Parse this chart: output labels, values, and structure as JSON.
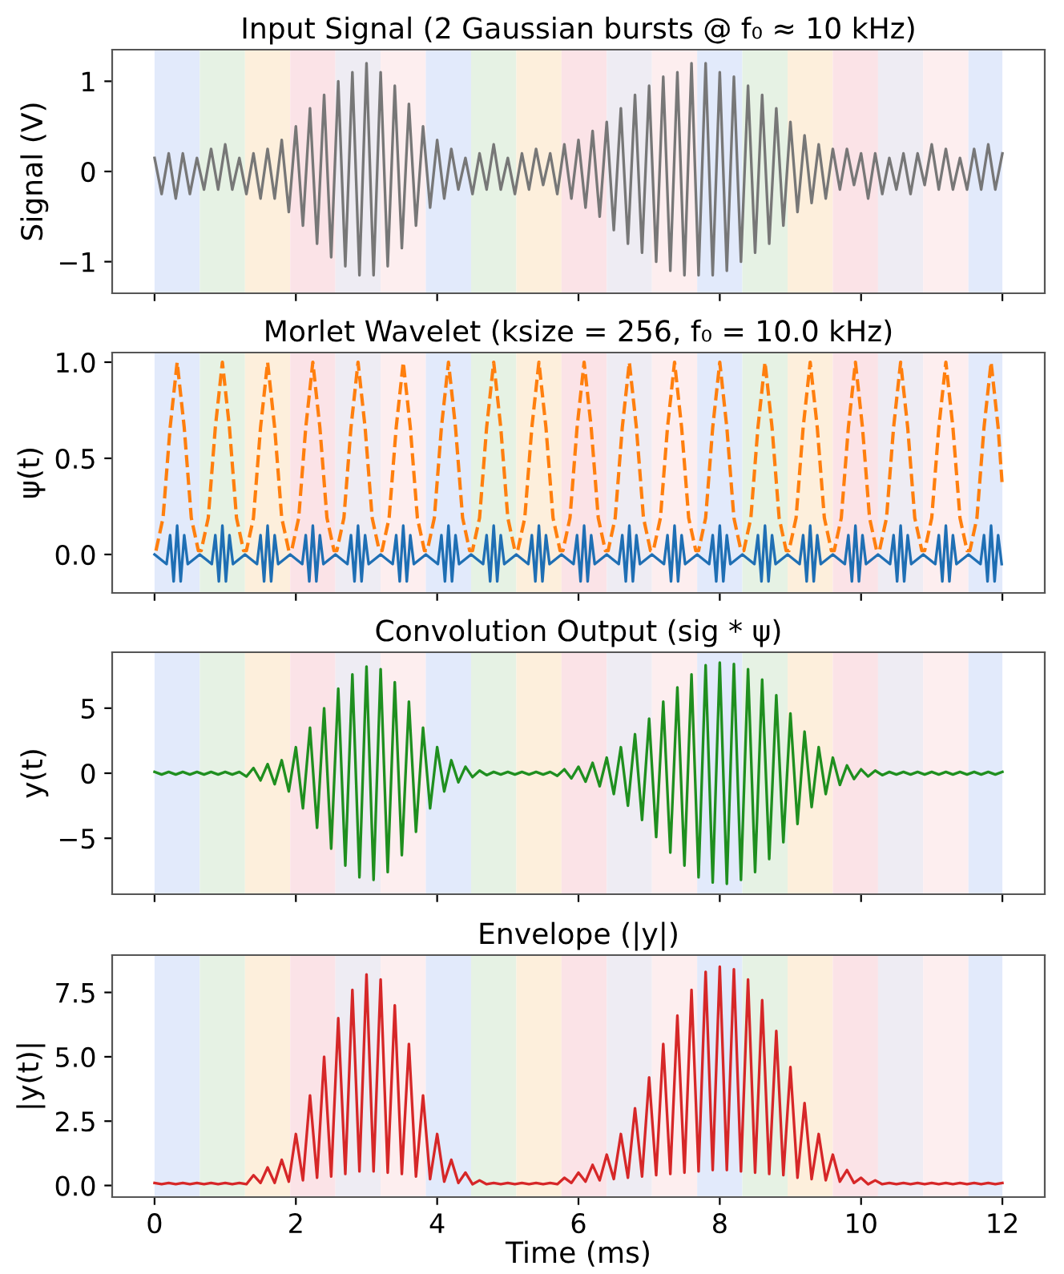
{
  "chart_data": [
    {
      "type": "line",
      "title": "Input Signal (2 Gaussian bursts @ f₀ ≈ 10 kHz)",
      "ylabel": "Signal (V)",
      "x": [
        0,
        0.1,
        0.2,
        0.3,
        0.4,
        0.5,
        0.6,
        0.7,
        0.8,
        0.9,
        1.0,
        1.1,
        1.2,
        1.3,
        1.4,
        1.5,
        1.6,
        1.7,
        1.8,
        1.9,
        2.0,
        2.1,
        2.2,
        2.3,
        2.4,
        2.5,
        2.6,
        2.7,
        2.8,
        2.9,
        3.0,
        3.1,
        3.2,
        3.3,
        3.4,
        3.5,
        3.6,
        3.7,
        3.8,
        3.9,
        4.0,
        4.1,
        4.2,
        4.3,
        4.4,
        4.5,
        4.6,
        4.7,
        4.8,
        4.9,
        5.0,
        5.1,
        5.2,
        5.3,
        5.4,
        5.5,
        5.6,
        5.7,
        5.8,
        5.9,
        6.0,
        6.1,
        6.2,
        6.3,
        6.4,
        6.5,
        6.6,
        6.7,
        6.8,
        6.9,
        7.0,
        7.1,
        7.2,
        7.3,
        7.4,
        7.5,
        7.6,
        7.7,
        7.8,
        7.9,
        8.0,
        8.1,
        8.2,
        8.3,
        8.4,
        8.5,
        8.6,
        8.7,
        8.8,
        8.9,
        9.0,
        9.1,
        9.2,
        9.3,
        9.4,
        9.5,
        9.6,
        9.7,
        9.8,
        9.9,
        10.0,
        10.1,
        10.2,
        10.3,
        10.4,
        10.5,
        10.6,
        10.7,
        10.8,
        10.9,
        11.0,
        11.1,
        11.2,
        11.3,
        11.4,
        11.5,
        11.6,
        11.7,
        11.8,
        11.9,
        12.0
      ],
      "series": [
        {
          "color": "#777777",
          "values": [
            0.15,
            -0.25,
            0.2,
            -0.3,
            0.2,
            -0.25,
            0.15,
            -0.2,
            0.25,
            -0.2,
            0.3,
            -0.2,
            0.15,
            -0.25,
            0.2,
            -0.3,
            0.25,
            -0.3,
            0.35,
            -0.45,
            0.5,
            -0.6,
            0.7,
            -0.8,
            0.85,
            -0.95,
            1.0,
            -1.05,
            1.1,
            -1.15,
            1.2,
            -1.15,
            1.1,
            -1.05,
            0.95,
            -0.85,
            0.75,
            -0.6,
            0.5,
            -0.4,
            0.35,
            -0.3,
            0.25,
            -0.2,
            0.15,
            -0.25,
            0.2,
            -0.2,
            0.3,
            -0.2,
            0.15,
            -0.25,
            0.2,
            -0.2,
            0.25,
            -0.15,
            0.2,
            -0.25,
            0.3,
            -0.3,
            0.35,
            -0.4,
            0.45,
            -0.5,
            0.55,
            -0.65,
            0.7,
            -0.8,
            0.85,
            -0.9,
            0.95,
            -1.0,
            1.05,
            -1.1,
            1.1,
            -1.15,
            1.2,
            -1.15,
            1.2,
            -1.15,
            1.1,
            -1.1,
            1.05,
            -1.0,
            0.95,
            -0.9,
            0.85,
            -0.8,
            0.7,
            -0.6,
            0.55,
            -0.45,
            0.4,
            -0.35,
            0.3,
            -0.3,
            0.25,
            -0.2,
            0.25,
            -0.15,
            0.2,
            -0.3,
            0.2,
            -0.25,
            0.15,
            -0.2,
            0.2,
            -0.25,
            0.2,
            -0.15,
            0.3,
            -0.2,
            0.25,
            -0.2,
            0.15,
            -0.2,
            0.25,
            -0.2,
            0.3,
            -0.2,
            0.2
          ]
        }
      ],
      "xlim": [
        -0.6,
        12.6
      ],
      "xticks": [
        {
          "value": 0,
          "label": null
        },
        {
          "value": 2,
          "label": null
        },
        {
          "value": 4,
          "label": null
        },
        {
          "value": 6,
          "label": null
        },
        {
          "value": 8,
          "label": null
        },
        {
          "value": 10,
          "label": null
        },
        {
          "value": 12,
          "label": null
        }
      ],
      "ylim": [
        -1.35,
        1.35
      ],
      "yticks": [
        {
          "value": -1,
          "label": "−1"
        },
        0,
        1
      ],
      "tick_labels": "y",
      "bands": [
        {
          "axis": "x",
          "from": 0,
          "to": 0.64,
          "color": "#e2eafb"
        },
        {
          "axis": "x",
          "from": 0.64,
          "to": 1.28,
          "color": "#e6f2e4"
        },
        {
          "axis": "x",
          "from": 1.28,
          "to": 1.92,
          "color": "#fdefdc"
        },
        {
          "axis": "x",
          "from": 1.92,
          "to": 2.56,
          "color": "#fbe3e7"
        },
        {
          "axis": "x",
          "from": 2.56,
          "to": 3.2,
          "color": "#eeecf3"
        },
        {
          "axis": "x",
          "from": 3.2,
          "to": 3.84,
          "color": "#fdeeef"
        },
        {
          "axis": "x",
          "from": 3.84,
          "to": 4.48,
          "color": "#e2eafb"
        },
        {
          "axis": "x",
          "from": 4.48,
          "to": 5.12,
          "color": "#e6f2e4"
        },
        {
          "axis": "x",
          "from": 5.12,
          "to": 5.76,
          "color": "#fdefdc"
        },
        {
          "axis": "x",
          "from": 5.76,
          "to": 6.4,
          "color": "#fbe3e7"
        },
        {
          "axis": "x",
          "from": 6.4,
          "to": 7.04,
          "color": "#eeecf3"
        },
        {
          "axis": "x",
          "from": 7.04,
          "to": 7.68,
          "color": "#fdeeef"
        },
        {
          "axis": "x",
          "from": 7.68,
          "to": 8.32,
          "color": "#e2eafb"
        },
        {
          "axis": "x",
          "from": 8.32,
          "to": 8.96,
          "color": "#e6f2e4"
        },
        {
          "axis": "x",
          "from": 8.96,
          "to": 9.6,
          "color": "#fdefdc"
        },
        {
          "axis": "x",
          "from": 9.6,
          "to": 10.24,
          "color": "#fbe3e7"
        },
        {
          "axis": "x",
          "from": 10.24,
          "to": 10.88,
          "color": "#eeecf3"
        },
        {
          "axis": "x",
          "from": 10.88,
          "to": 11.52,
          "color": "#fdeeef"
        },
        {
          "axis": "x",
          "from": 11.52,
          "to": 12,
          "color": "#e2eafb"
        }
      ]
    },
    {
      "type": "line",
      "title": "Morlet Wavelet (ksize = 256, f₀ = 10.0 kHz)",
      "ylabel": "ψ(t)",
      "series": [
        {
          "color": "#ff7f0e",
          "line_style": "dashed",
          "x": [
            0.02,
            0.12,
            0.22,
            0.32,
            0.42,
            0.52,
            0.62,
            0.66,
            0.76,
            0.86,
            0.96,
            1.06,
            1.16,
            1.26,
            1.3,
            1.4,
            1.5,
            1.6,
            1.7,
            1.8,
            1.9,
            1.94,
            2.04,
            2.14,
            2.24,
            2.34,
            2.44,
            2.54,
            2.58,
            2.68,
            2.78,
            2.88,
            2.98,
            3.08,
            3.18,
            3.22,
            3.32,
            3.42,
            3.52,
            3.62,
            3.72,
            3.82,
            3.86,
            3.96,
            4.06,
            4.16,
            4.26,
            4.36,
            4.46,
            4.5,
            4.6,
            4.7,
            4.8,
            4.9,
            5.0,
            5.1,
            5.14,
            5.24,
            5.34,
            5.44,
            5.54,
            5.64,
            5.74,
            5.78,
            5.88,
            5.98,
            6.08,
            6.18,
            6.28,
            6.38,
            6.42,
            6.52,
            6.62,
            6.72,
            6.82,
            6.92,
            7.02,
            7.06,
            7.16,
            7.26,
            7.36,
            7.46,
            7.56,
            7.66,
            7.7,
            7.8,
            7.9,
            8.0,
            8.1,
            8.2,
            8.3,
            8.34,
            8.44,
            8.54,
            8.64,
            8.74,
            8.84,
            8.94,
            8.98,
            9.08,
            9.18,
            9.28,
            9.38,
            9.48,
            9.58,
            9.62,
            9.72,
            9.82,
            9.92,
            10.02,
            10.12,
            10.22,
            10.26,
            10.36,
            10.46,
            10.56,
            10.66,
            10.76,
            10.86,
            10.9,
            11.0,
            11.1,
            11.2,
            11.3,
            11.4,
            11.5,
            11.54,
            11.64,
            11.74,
            11.84,
            11.94,
            12.0
          ],
          "values": [
            0.02,
            0.19,
            0.66,
            1.0,
            0.66,
            0.19,
            0.02,
            0.02,
            0.19,
            0.66,
            1.0,
            0.66,
            0.19,
            0.02,
            0.02,
            0.19,
            0.66,
            1.0,
            0.66,
            0.19,
            0.02,
            0.02,
            0.19,
            0.66,
            1.0,
            0.66,
            0.19,
            0.02,
            0.02,
            0.19,
            0.66,
            1.0,
            0.66,
            0.19,
            0.02,
            0.02,
            0.19,
            0.66,
            1.0,
            0.66,
            0.19,
            0.02,
            0.02,
            0.19,
            0.66,
            1.0,
            0.66,
            0.19,
            0.02,
            0.02,
            0.19,
            0.66,
            1.0,
            0.66,
            0.19,
            0.02,
            0.02,
            0.19,
            0.66,
            1.0,
            0.66,
            0.19,
            0.02,
            0.02,
            0.19,
            0.66,
            1.0,
            0.66,
            0.19,
            0.02,
            0.02,
            0.19,
            0.66,
            1.0,
            0.66,
            0.19,
            0.02,
            0.02,
            0.19,
            0.66,
            1.0,
            0.66,
            0.19,
            0.02,
            0.02,
            0.19,
            0.66,
            1.0,
            0.66,
            0.19,
            0.02,
            0.02,
            0.19,
            0.66,
            1.0,
            0.66,
            0.19,
            0.02,
            0.02,
            0.19,
            0.66,
            1.0,
            0.66,
            0.19,
            0.02,
            0.02,
            0.19,
            0.66,
            1.0,
            0.66,
            0.19,
            0.02,
            0.02,
            0.19,
            0.66,
            1.0,
            0.66,
            0.19,
            0.02,
            0.02,
            0.19,
            0.66,
            1.0,
            0.66,
            0.19,
            0.02,
            0.02,
            0.19,
            0.66,
            1.0,
            0.66,
            0.35
          ]
        },
        {
          "color": "#1f6fb4",
          "x": [
            0.0,
            0.17,
            0.22,
            0.27,
            0.32,
            0.37,
            0.42,
            0.47,
            0.64,
            0.81,
            0.86,
            0.91,
            0.96,
            1.01,
            1.06,
            1.11,
            1.28,
            1.45,
            1.5,
            1.55,
            1.6,
            1.65,
            1.7,
            1.75,
            1.92,
            2.09,
            2.14,
            2.19,
            2.24,
            2.29,
            2.34,
            2.39,
            2.56,
            2.73,
            2.78,
            2.83,
            2.88,
            2.93,
            2.98,
            3.03,
            3.2,
            3.37,
            3.42,
            3.47,
            3.52,
            3.57,
            3.62,
            3.67,
            3.84,
            4.01,
            4.06,
            4.11,
            4.16,
            4.21,
            4.26,
            4.31,
            4.48,
            4.65,
            4.7,
            4.75,
            4.8,
            4.85,
            4.9,
            4.95,
            5.12,
            5.29,
            5.34,
            5.39,
            5.44,
            5.49,
            5.54,
            5.59,
            5.76,
            5.93,
            5.98,
            6.03,
            6.08,
            6.13,
            6.18,
            6.23,
            6.4,
            6.57,
            6.62,
            6.67,
            6.72,
            6.77,
            6.82,
            6.87,
            7.04,
            7.21,
            7.26,
            7.31,
            7.36,
            7.41,
            7.46,
            7.51,
            7.68,
            7.85,
            7.9,
            7.95,
            8.0,
            8.05,
            8.1,
            8.15,
            8.32,
            8.49,
            8.54,
            8.59,
            8.64,
            8.69,
            8.74,
            8.79,
            8.96,
            9.13,
            9.18,
            9.23,
            9.28,
            9.33,
            9.38,
            9.43,
            9.6,
            9.77,
            9.82,
            9.87,
            9.92,
            9.97,
            10.02,
            10.07,
            10.24,
            10.41,
            10.46,
            10.51,
            10.56,
            10.61,
            10.66,
            10.71,
            10.88,
            11.05,
            11.1,
            11.15,
            11.2,
            11.25,
            11.3,
            11.35,
            11.52,
            11.69,
            11.74,
            11.79,
            11.84,
            11.89,
            11.94,
            11.99
          ],
          "values": [
            0.0,
            -0.05,
            0.1,
            -0.14,
            0.15,
            -0.14,
            0.1,
            -0.05,
            0.0,
            -0.05,
            0.1,
            -0.14,
            0.15,
            -0.14,
            0.1,
            -0.05,
            0.0,
            -0.05,
            0.1,
            -0.14,
            0.15,
            -0.14,
            0.1,
            -0.05,
            0.0,
            -0.05,
            0.1,
            -0.14,
            0.15,
            -0.14,
            0.1,
            -0.05,
            0.0,
            -0.05,
            0.1,
            -0.14,
            0.15,
            -0.14,
            0.1,
            -0.05,
            0.0,
            -0.05,
            0.1,
            -0.14,
            0.15,
            -0.14,
            0.1,
            -0.05,
            0.0,
            -0.05,
            0.1,
            -0.14,
            0.15,
            -0.14,
            0.1,
            -0.05,
            0.0,
            -0.05,
            0.1,
            -0.14,
            0.15,
            -0.14,
            0.1,
            -0.05,
            0.0,
            -0.05,
            0.1,
            -0.14,
            0.15,
            -0.14,
            0.1,
            -0.05,
            0.0,
            -0.05,
            0.1,
            -0.14,
            0.15,
            -0.14,
            0.1,
            -0.05,
            0.0,
            -0.05,
            0.1,
            -0.14,
            0.15,
            -0.14,
            0.1,
            -0.05,
            0.0,
            -0.05,
            0.1,
            -0.14,
            0.15,
            -0.14,
            0.1,
            -0.05,
            0.0,
            -0.05,
            0.1,
            -0.14,
            0.15,
            -0.14,
            0.1,
            -0.05,
            0.0,
            -0.05,
            0.1,
            -0.14,
            0.15,
            -0.14,
            0.1,
            -0.05,
            0.0,
            -0.05,
            0.1,
            -0.14,
            0.15,
            -0.14,
            0.1,
            -0.05,
            0.0,
            -0.05,
            0.1,
            -0.14,
            0.15,
            -0.14,
            0.1,
            -0.05,
            0.0,
            -0.05,
            0.1,
            -0.14,
            0.15,
            -0.14,
            0.1,
            -0.05,
            0.0,
            -0.05,
            0.1,
            -0.14,
            0.15,
            -0.14,
            0.1,
            -0.05,
            0.0,
            -0.05,
            0.1,
            -0.14,
            0.15,
            -0.14,
            0.1,
            -0.05
          ]
        }
      ],
      "xlim": [
        -0.6,
        12.6
      ],
      "xticks": [
        {
          "value": 0,
          "label": null
        },
        {
          "value": 2,
          "label": null
        },
        {
          "value": 4,
          "label": null
        },
        {
          "value": 6,
          "label": null
        },
        {
          "value": 8,
          "label": null
        },
        {
          "value": 10,
          "label": null
        },
        {
          "value": 12,
          "label": null
        }
      ],
      "ylim": [
        -0.2,
        1.05
      ],
      "yticks": [
        {
          "value": 0,
          "label": "0.0"
        },
        {
          "value": 0.5,
          "label": "0.5"
        },
        {
          "value": 1,
          "label": "1.0"
        }
      ],
      "tick_labels": "y",
      "bands": [
        {
          "axis": "x",
          "from": 0,
          "to": 0.64,
          "color": "#e2eafb"
        },
        {
          "axis": "x",
          "from": 0.64,
          "to": 1.28,
          "color": "#e6f2e4"
        },
        {
          "axis": "x",
          "from": 1.28,
          "to": 1.92,
          "color": "#fdefdc"
        },
        {
          "axis": "x",
          "from": 1.92,
          "to": 2.56,
          "color": "#fbe3e7"
        },
        {
          "axis": "x",
          "from": 2.56,
          "to": 3.2,
          "color": "#eeecf3"
        },
        {
          "axis": "x",
          "from": 3.2,
          "to": 3.84,
          "color": "#fdeeef"
        },
        {
          "axis": "x",
          "from": 3.84,
          "to": 4.48,
          "color": "#e2eafb"
        },
        {
          "axis": "x",
          "from": 4.48,
          "to": 5.12,
          "color": "#e6f2e4"
        },
        {
          "axis": "x",
          "from": 5.12,
          "to": 5.76,
          "color": "#fdefdc"
        },
        {
          "axis": "x",
          "from": 5.76,
          "to": 6.4,
          "color": "#fbe3e7"
        },
        {
          "axis": "x",
          "from": 6.4,
          "to": 7.04,
          "color": "#eeecf3"
        },
        {
          "axis": "x",
          "from": 7.04,
          "to": 7.68,
          "color": "#fdeeef"
        },
        {
          "axis": "x",
          "from": 7.68,
          "to": 8.32,
          "color": "#e2eafb"
        },
        {
          "axis": "x",
          "from": 8.32,
          "to": 8.96,
          "color": "#e6f2e4"
        },
        {
          "axis": "x",
          "from": 8.96,
          "to": 9.6,
          "color": "#fdefdc"
        },
        {
          "axis": "x",
          "from": 9.6,
          "to": 10.24,
          "color": "#fbe3e7"
        },
        {
          "axis": "x",
          "from": 10.24,
          "to": 10.88,
          "color": "#eeecf3"
        },
        {
          "axis": "x",
          "from": 10.88,
          "to": 11.52,
          "color": "#fdeeef"
        },
        {
          "axis": "x",
          "from": 11.52,
          "to": 12,
          "color": "#e2eafb"
        }
      ]
    },
    {
      "type": "line",
      "title": "Convolution Output (sig * ψ)",
      "ylabel": "y(t)",
      "x": [
        0,
        0.1,
        0.2,
        0.3,
        0.4,
        0.5,
        0.6,
        0.7,
        0.8,
        0.9,
        1.0,
        1.1,
        1.2,
        1.3,
        1.4,
        1.5,
        1.6,
        1.7,
        1.8,
        1.9,
        2.0,
        2.1,
        2.2,
        2.3,
        2.4,
        2.5,
        2.6,
        2.7,
        2.8,
        2.9,
        3.0,
        3.1,
        3.2,
        3.3,
        3.4,
        3.5,
        3.6,
        3.7,
        3.8,
        3.9,
        4.0,
        4.1,
        4.2,
        4.3,
        4.4,
        4.5,
        4.6,
        4.7,
        4.8,
        4.9,
        5.0,
        5.1,
        5.2,
        5.3,
        5.4,
        5.5,
        5.6,
        5.7,
        5.8,
        5.9,
        6.0,
        6.1,
        6.2,
        6.3,
        6.4,
        6.5,
        6.6,
        6.7,
        6.8,
        6.9,
        7.0,
        7.1,
        7.2,
        7.3,
        7.4,
        7.5,
        7.6,
        7.7,
        7.8,
        7.9,
        8.0,
        8.1,
        8.2,
        8.3,
        8.4,
        8.5,
        8.6,
        8.7,
        8.8,
        8.9,
        9.0,
        9.1,
        9.2,
        9.3,
        9.4,
        9.5,
        9.6,
        9.7,
        9.8,
        9.9,
        10.0,
        10.1,
        10.2,
        10.3,
        10.4,
        10.5,
        10.6,
        10.7,
        10.8,
        10.9,
        11.0,
        11.1,
        11.2,
        11.3,
        11.4,
        11.5,
        11.6,
        11.7,
        11.8,
        11.9,
        12.0
      ],
      "series": [
        {
          "color": "#1f8f1f",
          "values": [
            0.1,
            -0.1,
            0.1,
            -0.1,
            0.1,
            -0.1,
            0.1,
            -0.1,
            0.1,
            -0.1,
            0.1,
            -0.1,
            0.1,
            -0.25,
            0.4,
            -0.55,
            0.7,
            -0.85,
            1.0,
            -1.4,
            2.0,
            -2.7,
            3.5,
            -4.2,
            5.0,
            -5.8,
            6.5,
            -7.1,
            7.6,
            -8.0,
            8.2,
            -8.2,
            8.0,
            -7.6,
            7.0,
            -6.3,
            5.5,
            -4.5,
            3.5,
            -2.7,
            2.0,
            -1.4,
            1.0,
            -0.7,
            0.5,
            -0.3,
            0.2,
            -0.15,
            0.1,
            -0.1,
            0.1,
            -0.1,
            0.1,
            -0.1,
            0.1,
            -0.1,
            0.1,
            -0.2,
            0.3,
            -0.4,
            0.5,
            -0.65,
            0.8,
            -1.0,
            1.2,
            -1.6,
            2.0,
            -2.5,
            3.0,
            -3.6,
            4.2,
            -4.9,
            5.5,
            -6.1,
            6.6,
            -7.1,
            7.6,
            -8.0,
            8.3,
            -8.4,
            8.5,
            -8.5,
            8.4,
            -8.2,
            8.0,
            -7.6,
            7.2,
            -6.6,
            6.0,
            -5.3,
            4.6,
            -3.9,
            3.2,
            -2.6,
            2.0,
            -1.6,
            1.2,
            -0.9,
            0.6,
            -0.45,
            0.3,
            -0.25,
            0.2,
            -0.15,
            0.1,
            -0.1,
            0.1,
            -0.1,
            0.1,
            -0.1,
            0.1,
            -0.1,
            0.1,
            -0.1,
            0.1,
            -0.1,
            0.1,
            -0.1,
            0.1,
            -0.1,
            0.1
          ]
        }
      ],
      "xlim": [
        -0.6,
        12.6
      ],
      "xticks": [
        {
          "value": 0,
          "label": null
        },
        {
          "value": 2,
          "label": null
        },
        {
          "value": 4,
          "label": null
        },
        {
          "value": 6,
          "label": null
        },
        {
          "value": 8,
          "label": null
        },
        {
          "value": 10,
          "label": null
        },
        {
          "value": 12,
          "label": null
        }
      ],
      "ylim": [
        -9.3,
        9.3
      ],
      "yticks": [
        {
          "value": -5,
          "label": "−5"
        },
        0,
        5
      ],
      "tick_labels": "y",
      "bands": [
        {
          "axis": "x",
          "from": 0,
          "to": 0.64,
          "color": "#e2eafb"
        },
        {
          "axis": "x",
          "from": 0.64,
          "to": 1.28,
          "color": "#e6f2e4"
        },
        {
          "axis": "x",
          "from": 1.28,
          "to": 1.92,
          "color": "#fdefdc"
        },
        {
          "axis": "x",
          "from": 1.92,
          "to": 2.56,
          "color": "#fbe3e7"
        },
        {
          "axis": "x",
          "from": 2.56,
          "to": 3.2,
          "color": "#eeecf3"
        },
        {
          "axis": "x",
          "from": 3.2,
          "to": 3.84,
          "color": "#fdeeef"
        },
        {
          "axis": "x",
          "from": 3.84,
          "to": 4.48,
          "color": "#e2eafb"
        },
        {
          "axis": "x",
          "from": 4.48,
          "to": 5.12,
          "color": "#e6f2e4"
        },
        {
          "axis": "x",
          "from": 5.12,
          "to": 5.76,
          "color": "#fdefdc"
        },
        {
          "axis": "x",
          "from": 5.76,
          "to": 6.4,
          "color": "#fbe3e7"
        },
        {
          "axis": "x",
          "from": 6.4,
          "to": 7.04,
          "color": "#eeecf3"
        },
        {
          "axis": "x",
          "from": 7.04,
          "to": 7.68,
          "color": "#fdeeef"
        },
        {
          "axis": "x",
          "from": 7.68,
          "to": 8.32,
          "color": "#e2eafb"
        },
        {
          "axis": "x",
          "from": 8.32,
          "to": 8.96,
          "color": "#e6f2e4"
        },
        {
          "axis": "x",
          "from": 8.96,
          "to": 9.6,
          "color": "#fdefdc"
        },
        {
          "axis": "x",
          "from": 9.6,
          "to": 10.24,
          "color": "#fbe3e7"
        },
        {
          "axis": "x",
          "from": 10.24,
          "to": 10.88,
          "color": "#eeecf3"
        },
        {
          "axis": "x",
          "from": 10.88,
          "to": 11.52,
          "color": "#fdeeef"
        },
        {
          "axis": "x",
          "from": 11.52,
          "to": 12,
          "color": "#e2eafb"
        }
      ]
    },
    {
      "type": "line",
      "title": "Envelope (|y|)",
      "ylabel": "|y(t)|",
      "xlabel": "Time (ms)",
      "x": [
        0,
        0.1,
        0.2,
        0.3,
        0.4,
        0.5,
        0.6,
        0.7,
        0.8,
        0.9,
        1.0,
        1.1,
        1.2,
        1.3,
        1.4,
        1.5,
        1.6,
        1.7,
        1.8,
        1.9,
        2.0,
        2.1,
        2.2,
        2.3,
        2.4,
        2.5,
        2.6,
        2.7,
        2.8,
        2.9,
        3.0,
        3.1,
        3.2,
        3.3,
        3.4,
        3.5,
        3.6,
        3.7,
        3.8,
        3.9,
        4.0,
        4.1,
        4.2,
        4.3,
        4.4,
        4.5,
        4.6,
        4.7,
        4.8,
        4.9,
        5.0,
        5.1,
        5.2,
        5.3,
        5.4,
        5.5,
        5.6,
        5.7,
        5.8,
        5.9,
        6.0,
        6.1,
        6.2,
        6.3,
        6.4,
        6.5,
        6.6,
        6.7,
        6.8,
        6.9,
        7.0,
        7.1,
        7.2,
        7.3,
        7.4,
        7.5,
        7.6,
        7.7,
        7.8,
        7.9,
        8.0,
        8.1,
        8.2,
        8.3,
        8.4,
        8.5,
        8.6,
        8.7,
        8.8,
        8.9,
        9.0,
        9.1,
        9.2,
        9.3,
        9.4,
        9.5,
        9.6,
        9.7,
        9.8,
        9.9,
        10.0,
        10.1,
        10.2,
        10.3,
        10.4,
        10.5,
        10.6,
        10.7,
        10.8,
        10.9,
        11.0,
        11.1,
        11.2,
        11.3,
        11.4,
        11.5,
        11.6,
        11.7,
        11.8,
        11.9,
        12.0
      ],
      "series": [
        {
          "color": "#d62728",
          "values": [
            0.1,
            0.05,
            0.1,
            0.05,
            0.1,
            0.05,
            0.1,
            0.05,
            0.1,
            0.05,
            0.1,
            0.05,
            0.1,
            0.05,
            0.4,
            0.1,
            0.7,
            0.1,
            1.0,
            0.15,
            2.0,
            0.2,
            3.5,
            0.3,
            5.0,
            0.35,
            6.5,
            0.45,
            7.6,
            0.55,
            8.2,
            0.55,
            8.0,
            0.5,
            7.0,
            0.45,
            5.5,
            0.35,
            3.5,
            0.25,
            2.0,
            0.15,
            1.0,
            0.1,
            0.5,
            0.05,
            0.2,
            0.05,
            0.1,
            0.05,
            0.1,
            0.05,
            0.1,
            0.05,
            0.1,
            0.05,
            0.1,
            0.05,
            0.3,
            0.1,
            0.5,
            0.15,
            0.8,
            0.2,
            1.2,
            0.25,
            2.0,
            0.3,
            3.0,
            0.35,
            4.2,
            0.4,
            5.5,
            0.45,
            6.6,
            0.5,
            7.6,
            0.55,
            8.3,
            0.6,
            8.5,
            0.6,
            8.4,
            0.55,
            8.0,
            0.5,
            7.2,
            0.45,
            6.0,
            0.4,
            4.6,
            0.3,
            3.2,
            0.25,
            2.0,
            0.2,
            1.2,
            0.15,
            0.6,
            0.1,
            0.3,
            0.05,
            0.2,
            0.05,
            0.1,
            0.05,
            0.1,
            0.05,
            0.1,
            0.05,
            0.1,
            0.05,
            0.1,
            0.05,
            0.1,
            0.05,
            0.1,
            0.05,
            0.1,
            0.05,
            0.1
          ]
        }
      ],
      "xlim": [
        -0.6,
        12.6
      ],
      "xticks": [
        0,
        2,
        4,
        6,
        8,
        10,
        12
      ],
      "ylim": [
        -0.45,
        8.95
      ],
      "yticks": [
        {
          "value": 0,
          "label": "0.0"
        },
        {
          "value": 2.5,
          "label": "2.5"
        },
        {
          "value": 5,
          "label": "5.0"
        },
        {
          "value": 7.5,
          "label": "7.5"
        }
      ],
      "bands": [
        {
          "axis": "x",
          "from": 0,
          "to": 0.64,
          "color": "#e2eafb"
        },
        {
          "axis": "x",
          "from": 0.64,
          "to": 1.28,
          "color": "#e6f2e4"
        },
        {
          "axis": "x",
          "from": 1.28,
          "to": 1.92,
          "color": "#fdefdc"
        },
        {
          "axis": "x",
          "from": 1.92,
          "to": 2.56,
          "color": "#fbe3e7"
        },
        {
          "axis": "x",
          "from": 2.56,
          "to": 3.2,
          "color": "#eeecf3"
        },
        {
          "axis": "x",
          "from": 3.2,
          "to": 3.84,
          "color": "#fdeeef"
        },
        {
          "axis": "x",
          "from": 3.84,
          "to": 4.48,
          "color": "#e2eafb"
        },
        {
          "axis": "x",
          "from": 4.48,
          "to": 5.12,
          "color": "#e6f2e4"
        },
        {
          "axis": "x",
          "from": 5.12,
          "to": 5.76,
          "color": "#fdefdc"
        },
        {
          "axis": "x",
          "from": 5.76,
          "to": 6.4,
          "color": "#fbe3e7"
        },
        {
          "axis": "x",
          "from": 6.4,
          "to": 7.04,
          "color": "#eeecf3"
        },
        {
          "axis": "x",
          "from": 7.04,
          "to": 7.68,
          "color": "#fdeeef"
        },
        {
          "axis": "x",
          "from": 7.68,
          "to": 8.32,
          "color": "#e2eafb"
        },
        {
          "axis": "x",
          "from": 8.32,
          "to": 8.96,
          "color": "#e6f2e4"
        },
        {
          "axis": "x",
          "from": 8.96,
          "to": 9.6,
          "color": "#fdefdc"
        },
        {
          "axis": "x",
          "from": 9.6,
          "to": 10.24,
          "color": "#fbe3e7"
        },
        {
          "axis": "x",
          "from": 10.24,
          "to": 10.88,
          "color": "#eeecf3"
        },
        {
          "axis": "x",
          "from": 10.88,
          "to": 11.52,
          "color": "#fdeeef"
        },
        {
          "axis": "x",
          "from": 11.52,
          "to": 12,
          "color": "#e2eafb"
        }
      ]
    }
  ]
}
